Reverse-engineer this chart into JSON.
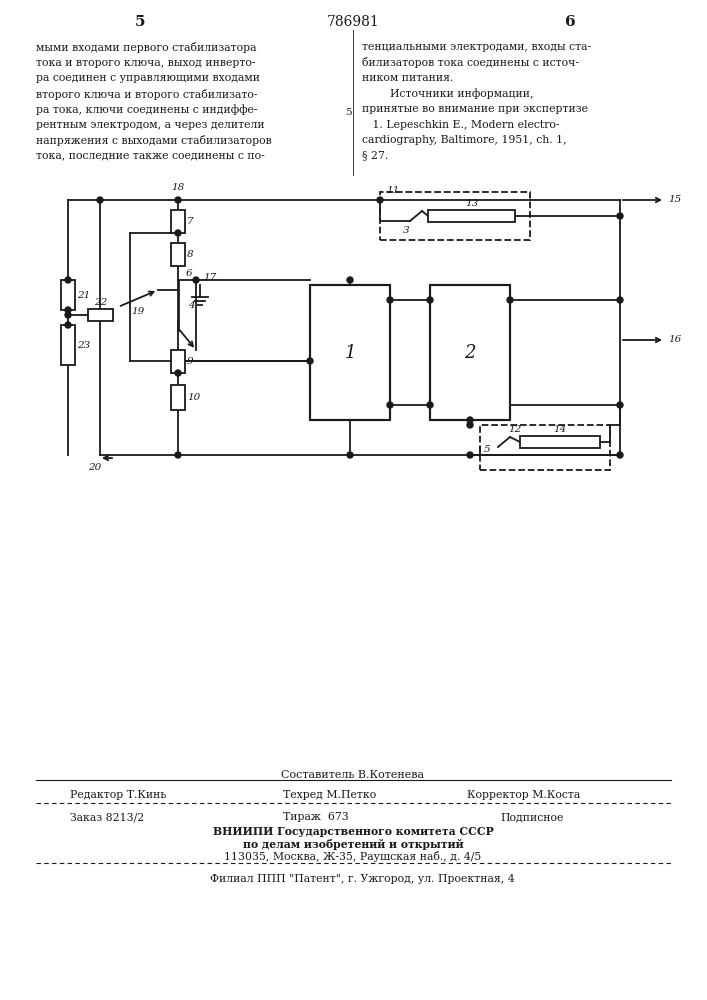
{
  "page_number_left": "5",
  "patent_number": "786981",
  "page_number_right": "6",
  "col_left_text": [
    "мыми входами первого стабилизатора",
    "тока и второго ключа, выход инверто-",
    "ра соединен с управляющими входами",
    "второго ключа и второго стабилизато-",
    "ра тока, ключи соединены с индиффе-",
    "рентным электродом, а через делители",
    "напряжения с выходами стабилизаторов",
    "тока, последние также соединены с по-"
  ],
  "col_right_lines": [
    "тенциальными электродами, входы ста-",
    "билизаторов тока соединены с источ-",
    "ником питания.",
    "        Источники информации,",
    "принятые во внимание при экспертизе",
    "   1. Lepeschkin E., Modern electro-",
    "cardiography, Baltimore, 1951, ch. 1,",
    "§ 27."
  ],
  "ref_number": "5",
  "editor_line": "Редактор Т.Кинь",
  "techred_line": "Техред М.Петко",
  "corrector_line": "Корректор М.Коста",
  "composer_line": "Составитель В.Котенева",
  "order_line": "Заказ 8213/2",
  "tirazh_line": "Тираж  673",
  "podpisnoe_line": "Подписное",
  "vniipи_line1": "ВНИИПИ Государственного комитета СССР",
  "vniipи_line2": "по делам изобретений и открытий",
  "vniipи_line3": "113035, Москва, Ж-35, Раушская наб., д. 4/5",
  "filial_line": "Филиал ППП \"Патент\", г. Ужгород, ул. Проектная, 4",
  "bg_color": "#ffffff",
  "text_color": "#1a1a1a"
}
